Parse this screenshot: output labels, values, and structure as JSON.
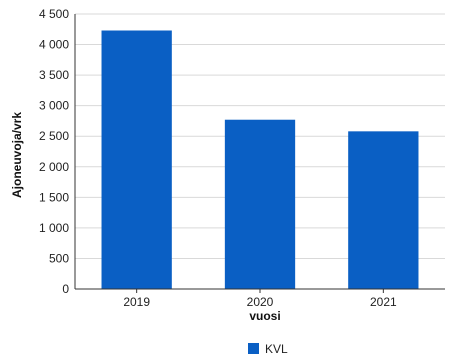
{
  "chart_data": {
    "type": "bar",
    "categories": [
      "2019",
      "2020",
      "2021"
    ],
    "series": [
      {
        "name": "KVL",
        "values": [
          4230,
          2770,
          2580
        ]
      }
    ],
    "xlabel": "vuosi",
    "ylabel": "Ajoneuvoja/vrk",
    "ylim": [
      0,
      4500
    ],
    "yticks": [
      0,
      500,
      1000,
      1500,
      2000,
      2500,
      3000,
      3500,
      4000,
      4500
    ],
    "ytick_labels": [
      "0",
      "500",
      "1 000",
      "1 500",
      "2 000",
      "2 500",
      "3 000",
      "3 500",
      "4 000",
      "4 500"
    ],
    "grid": "horizontal",
    "legend": "bottom-center",
    "bar_color": "#0a5fc4",
    "grid_color": "#d9d9d9"
  }
}
